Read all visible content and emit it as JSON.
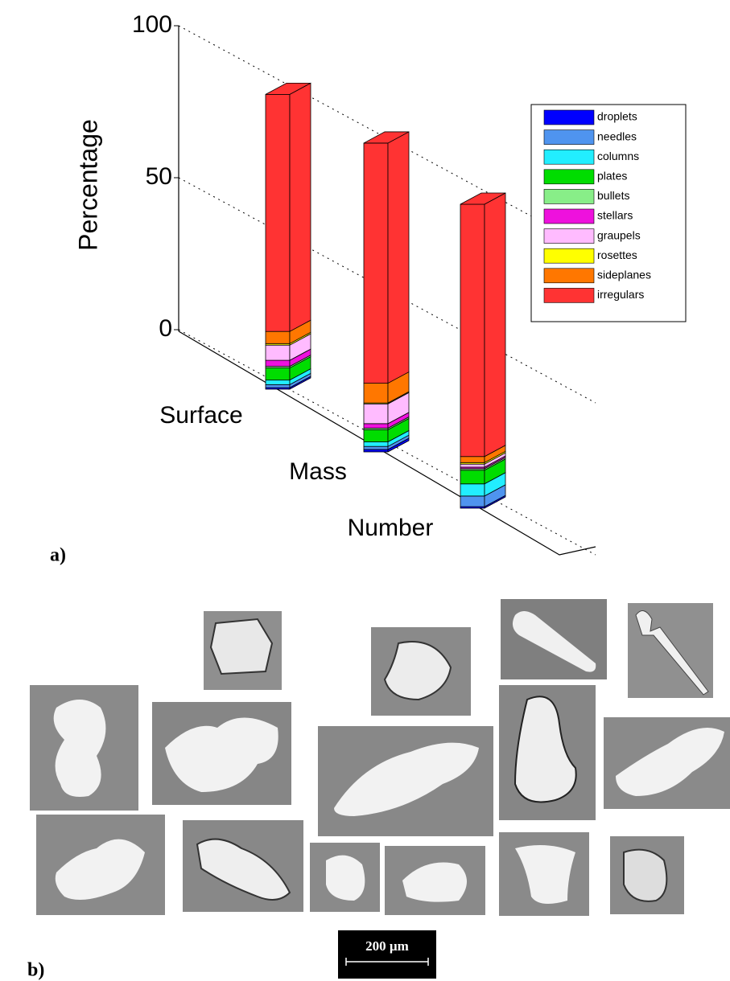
{
  "chart_data": {
    "type": "bar3d_stacked",
    "ylabel": "Percentage",
    "categories": [
      "Surface",
      "Mass",
      "Number"
    ],
    "ylim": [
      0,
      100
    ],
    "yticks": [
      0,
      50,
      100
    ],
    "grid": true,
    "legend": "upper right",
    "series": [
      {
        "name": "droplets",
        "color": "#0000ff",
        "values": [
          0.5,
          0.8,
          0.5
        ]
      },
      {
        "name": "needles",
        "color": "#4f94ef",
        "values": [
          1,
          1,
          3.5
        ]
      },
      {
        "name": "columns",
        "color": "#22eeff",
        "values": [
          1.5,
          1.5,
          4
        ]
      },
      {
        "name": "plates",
        "color": "#00dd00",
        "values": [
          4,
          4,
          4.5
        ]
      },
      {
        "name": "bullets",
        "color": "#88ee88",
        "values": [
          0.5,
          0.5,
          0.5
        ]
      },
      {
        "name": "stellars",
        "color": "#ee11dd",
        "values": [
          2,
          1.5,
          0.5
        ]
      },
      {
        "name": "graupels",
        "color": "#ffbbff",
        "values": [
          5,
          6.5,
          1
        ]
      },
      {
        "name": "rosettes",
        "color": "#ffff00",
        "values": [
          0.5,
          0.3,
          0.5
        ]
      },
      {
        "name": "sideplanes",
        "color": "#ff7700",
        "values": [
          4,
          6.5,
          2
        ]
      },
      {
        "name": "irregulars",
        "color": "#ff3333",
        "values": [
          78,
          79,
          83
        ]
      }
    ]
  },
  "panel_a_label": "a)",
  "panel_b_label": "b)",
  "scale_bar_label": "200 µm"
}
